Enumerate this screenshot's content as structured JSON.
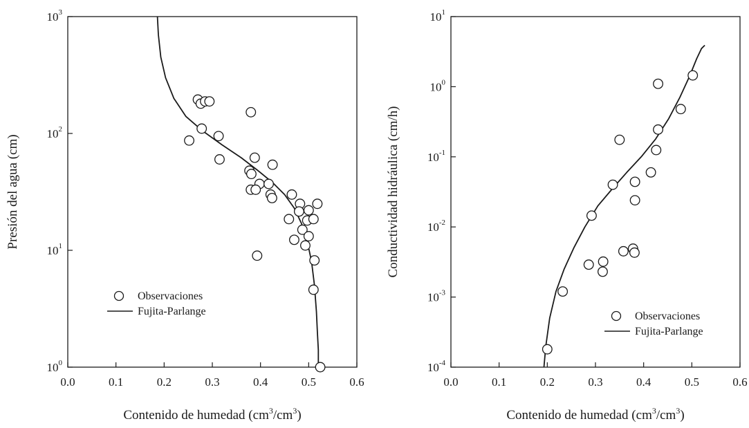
{
  "chart_data": [
    {
      "type": "scatter",
      "xlabel": {
        "main": "Contenido de humedad (cm",
        "sup1": "3",
        "mid": "/cm",
        "sup2": "3",
        "end": ")"
      },
      "ylabel": "Presión del agua (cm)",
      "yscale": "log",
      "xlim": [
        0.0,
        0.6
      ],
      "ylim": [
        1,
        1000
      ],
      "xticks": [
        "0.0",
        "0.1",
        "0.2",
        "0.3",
        "0.4",
        "0.5",
        "0.6"
      ],
      "yticks": [
        {
          "base": "10",
          "exp": "0"
        },
        {
          "base": "10",
          "exp": "1"
        },
        {
          "base": "10",
          "exp": "2"
        },
        {
          "base": "10",
          "exp": "3"
        }
      ],
      "grid": false,
      "legend_position": "bottom-left",
      "series": [
        {
          "name": "Observaciones",
          "kind": "markers",
          "points": [
            [
              0.252,
              87
            ],
            [
              0.27,
              195
            ],
            [
              0.276,
              180
            ],
            [
              0.285,
              188
            ],
            [
              0.294,
              188
            ],
            [
              0.278,
              110
            ],
            [
              0.313,
              95
            ],
            [
              0.315,
              60
            ],
            [
              0.38,
              152
            ],
            [
              0.388,
              62
            ],
            [
              0.425,
              54
            ],
            [
              0.377,
              48
            ],
            [
              0.381,
              45
            ],
            [
              0.398,
              37
            ],
            [
              0.417,
              37
            ],
            [
              0.38,
              33
            ],
            [
              0.39,
              33
            ],
            [
              0.421,
              30
            ],
            [
              0.424,
              28
            ],
            [
              0.465,
              30
            ],
            [
              0.482,
              25
            ],
            [
              0.48,
              21.5
            ],
            [
              0.5,
              22
            ],
            [
              0.518,
              25
            ],
            [
              0.459,
              18.5
            ],
            [
              0.497,
              18
            ],
            [
              0.51,
              18.5
            ],
            [
              0.487,
              15
            ],
            [
              0.47,
              12.3
            ],
            [
              0.5,
              13.2
            ],
            [
              0.493,
              11
            ],
            [
              0.512,
              8.2
            ],
            [
              0.393,
              9
            ],
            [
              0.51,
              4.6
            ],
            [
              0.524,
              1.0
            ]
          ]
        },
        {
          "name": "Fujita-Parlange",
          "kind": "line",
          "points": [
            [
              0.186,
              1000
            ],
            [
              0.188,
              700
            ],
            [
              0.193,
              450
            ],
            [
              0.203,
              300
            ],
            [
              0.22,
              200
            ],
            [
              0.245,
              140
            ],
            [
              0.28,
              105
            ],
            [
              0.32,
              80
            ],
            [
              0.36,
              62
            ],
            [
              0.395,
              48
            ],
            [
              0.425,
              38
            ],
            [
              0.45,
              30
            ],
            [
              0.47,
              23
            ],
            [
              0.485,
              17
            ],
            [
              0.497,
              12
            ],
            [
              0.506,
              8
            ],
            [
              0.512,
              5
            ],
            [
              0.516,
              3
            ],
            [
              0.518,
              2
            ],
            [
              0.52,
              1.4
            ],
            [
              0.52,
              1
            ]
          ]
        }
      ]
    },
    {
      "type": "scatter",
      "xlabel": {
        "main": "Contenido de humedad (cm",
        "sup1": "3",
        "mid": "/cm",
        "sup2": "3",
        "end": ")"
      },
      "ylabel": "Conductividad hidráulica (cm/h)",
      "yscale": "log",
      "xlim": [
        0.0,
        0.6
      ],
      "ylim": [
        0.0001,
        10
      ],
      "xticks": [
        "0.0",
        "0.1",
        "0.2",
        "0.3",
        "0.4",
        "0.5",
        "0.6"
      ],
      "yticks": [
        {
          "base": "10",
          "exp": "-4"
        },
        {
          "base": "10",
          "exp": "-3"
        },
        {
          "base": "10",
          "exp": "-2"
        },
        {
          "base": "10",
          "exp": "-1"
        },
        {
          "base": "10",
          "exp": "0"
        },
        {
          "base": "10",
          "exp": "1"
        }
      ],
      "grid": false,
      "legend_position": "bottom-right",
      "series": [
        {
          "name": "Observaciones",
          "kind": "markers",
          "points": [
            [
              0.2,
              0.00018
            ],
            [
              0.232,
              0.0012
            ],
            [
              0.286,
              0.0029
            ],
            [
              0.316,
              0.0032
            ],
            [
              0.315,
              0.0023
            ],
            [
              0.292,
              0.0145
            ],
            [
              0.336,
              0.04
            ],
            [
              0.35,
              0.175
            ],
            [
              0.358,
              0.0045
            ],
            [
              0.378,
              0.0049
            ],
            [
              0.381,
              0.0043
            ],
            [
              0.382,
              0.044
            ],
            [
              0.382,
              0.024
            ],
            [
              0.415,
              0.06
            ],
            [
              0.426,
              0.125
            ],
            [
              0.43,
              0.245
            ],
            [
              0.43,
              1.1
            ],
            [
              0.477,
              0.48
            ],
            [
              0.502,
              1.45
            ]
          ]
        },
        {
          "name": "Fujita-Parlange",
          "kind": "line",
          "points": [
            [
              0.193,
              0.0001
            ],
            [
              0.197,
              0.0002
            ],
            [
              0.205,
              0.0005
            ],
            [
              0.218,
              0.0012
            ],
            [
              0.235,
              0.0025
            ],
            [
              0.255,
              0.005
            ],
            [
              0.278,
              0.01
            ],
            [
              0.305,
              0.02
            ],
            [
              0.335,
              0.035
            ],
            [
              0.365,
              0.06
            ],
            [
              0.395,
              0.1
            ],
            [
              0.425,
              0.18
            ],
            [
              0.452,
              0.35
            ],
            [
              0.475,
              0.7
            ],
            [
              0.495,
              1.4
            ],
            [
              0.51,
              2.5
            ],
            [
              0.52,
              3.5
            ],
            [
              0.527,
              3.9
            ]
          ]
        }
      ]
    }
  ]
}
